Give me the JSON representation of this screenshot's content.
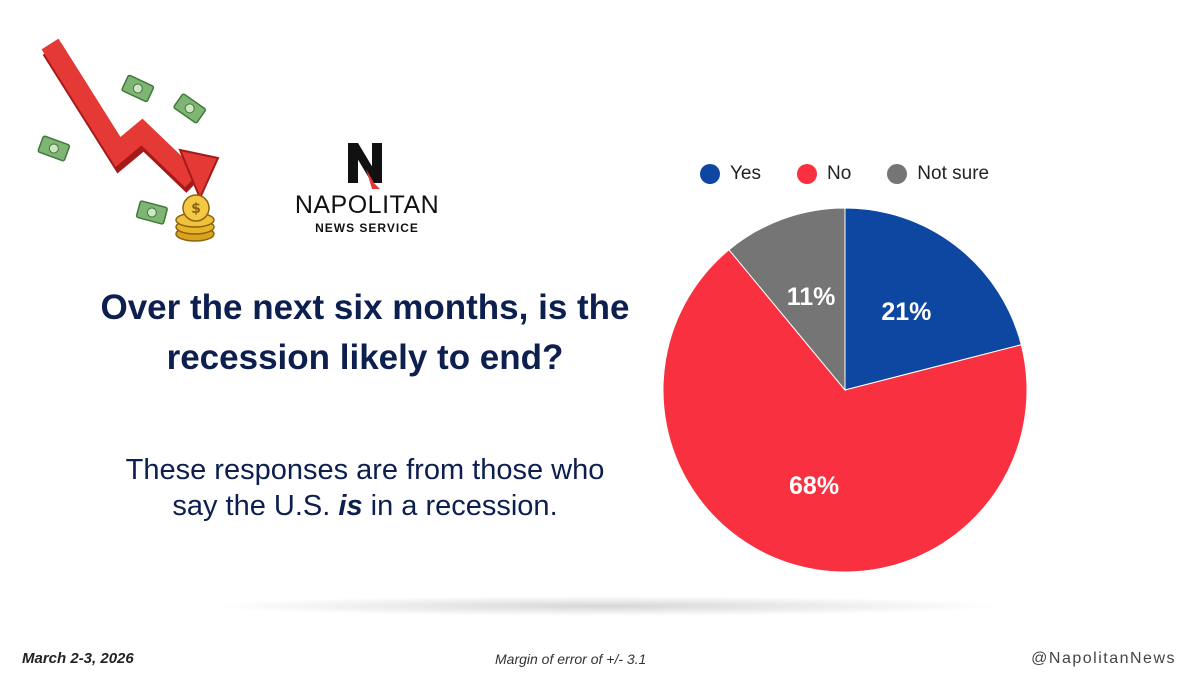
{
  "logo": {
    "name": "NAPOLITAN",
    "subtitle": "NEWS SERVICE"
  },
  "question": "Over the next six months, is the recession likely to end?",
  "subtext": {
    "before": "These responses are from those who say the U.S. ",
    "emphasis": "is",
    "after": " in a recession."
  },
  "chart_data": {
    "type": "pie",
    "categories": [
      "Yes",
      "No",
      "Not sure"
    ],
    "values": [
      21,
      68,
      11
    ],
    "value_labels": [
      "21%",
      "68%",
      "11%"
    ],
    "colors": [
      "#0d47a1",
      "#f8303f",
      "#757575"
    ],
    "legend_position": "top"
  },
  "footer": {
    "date": "March 2-3, 2026",
    "margin": "Margin of error of +/- 3.1",
    "handle": "@NapolitanNews"
  },
  "illustration": {
    "icon": "falling-arrow-money-icon"
  }
}
